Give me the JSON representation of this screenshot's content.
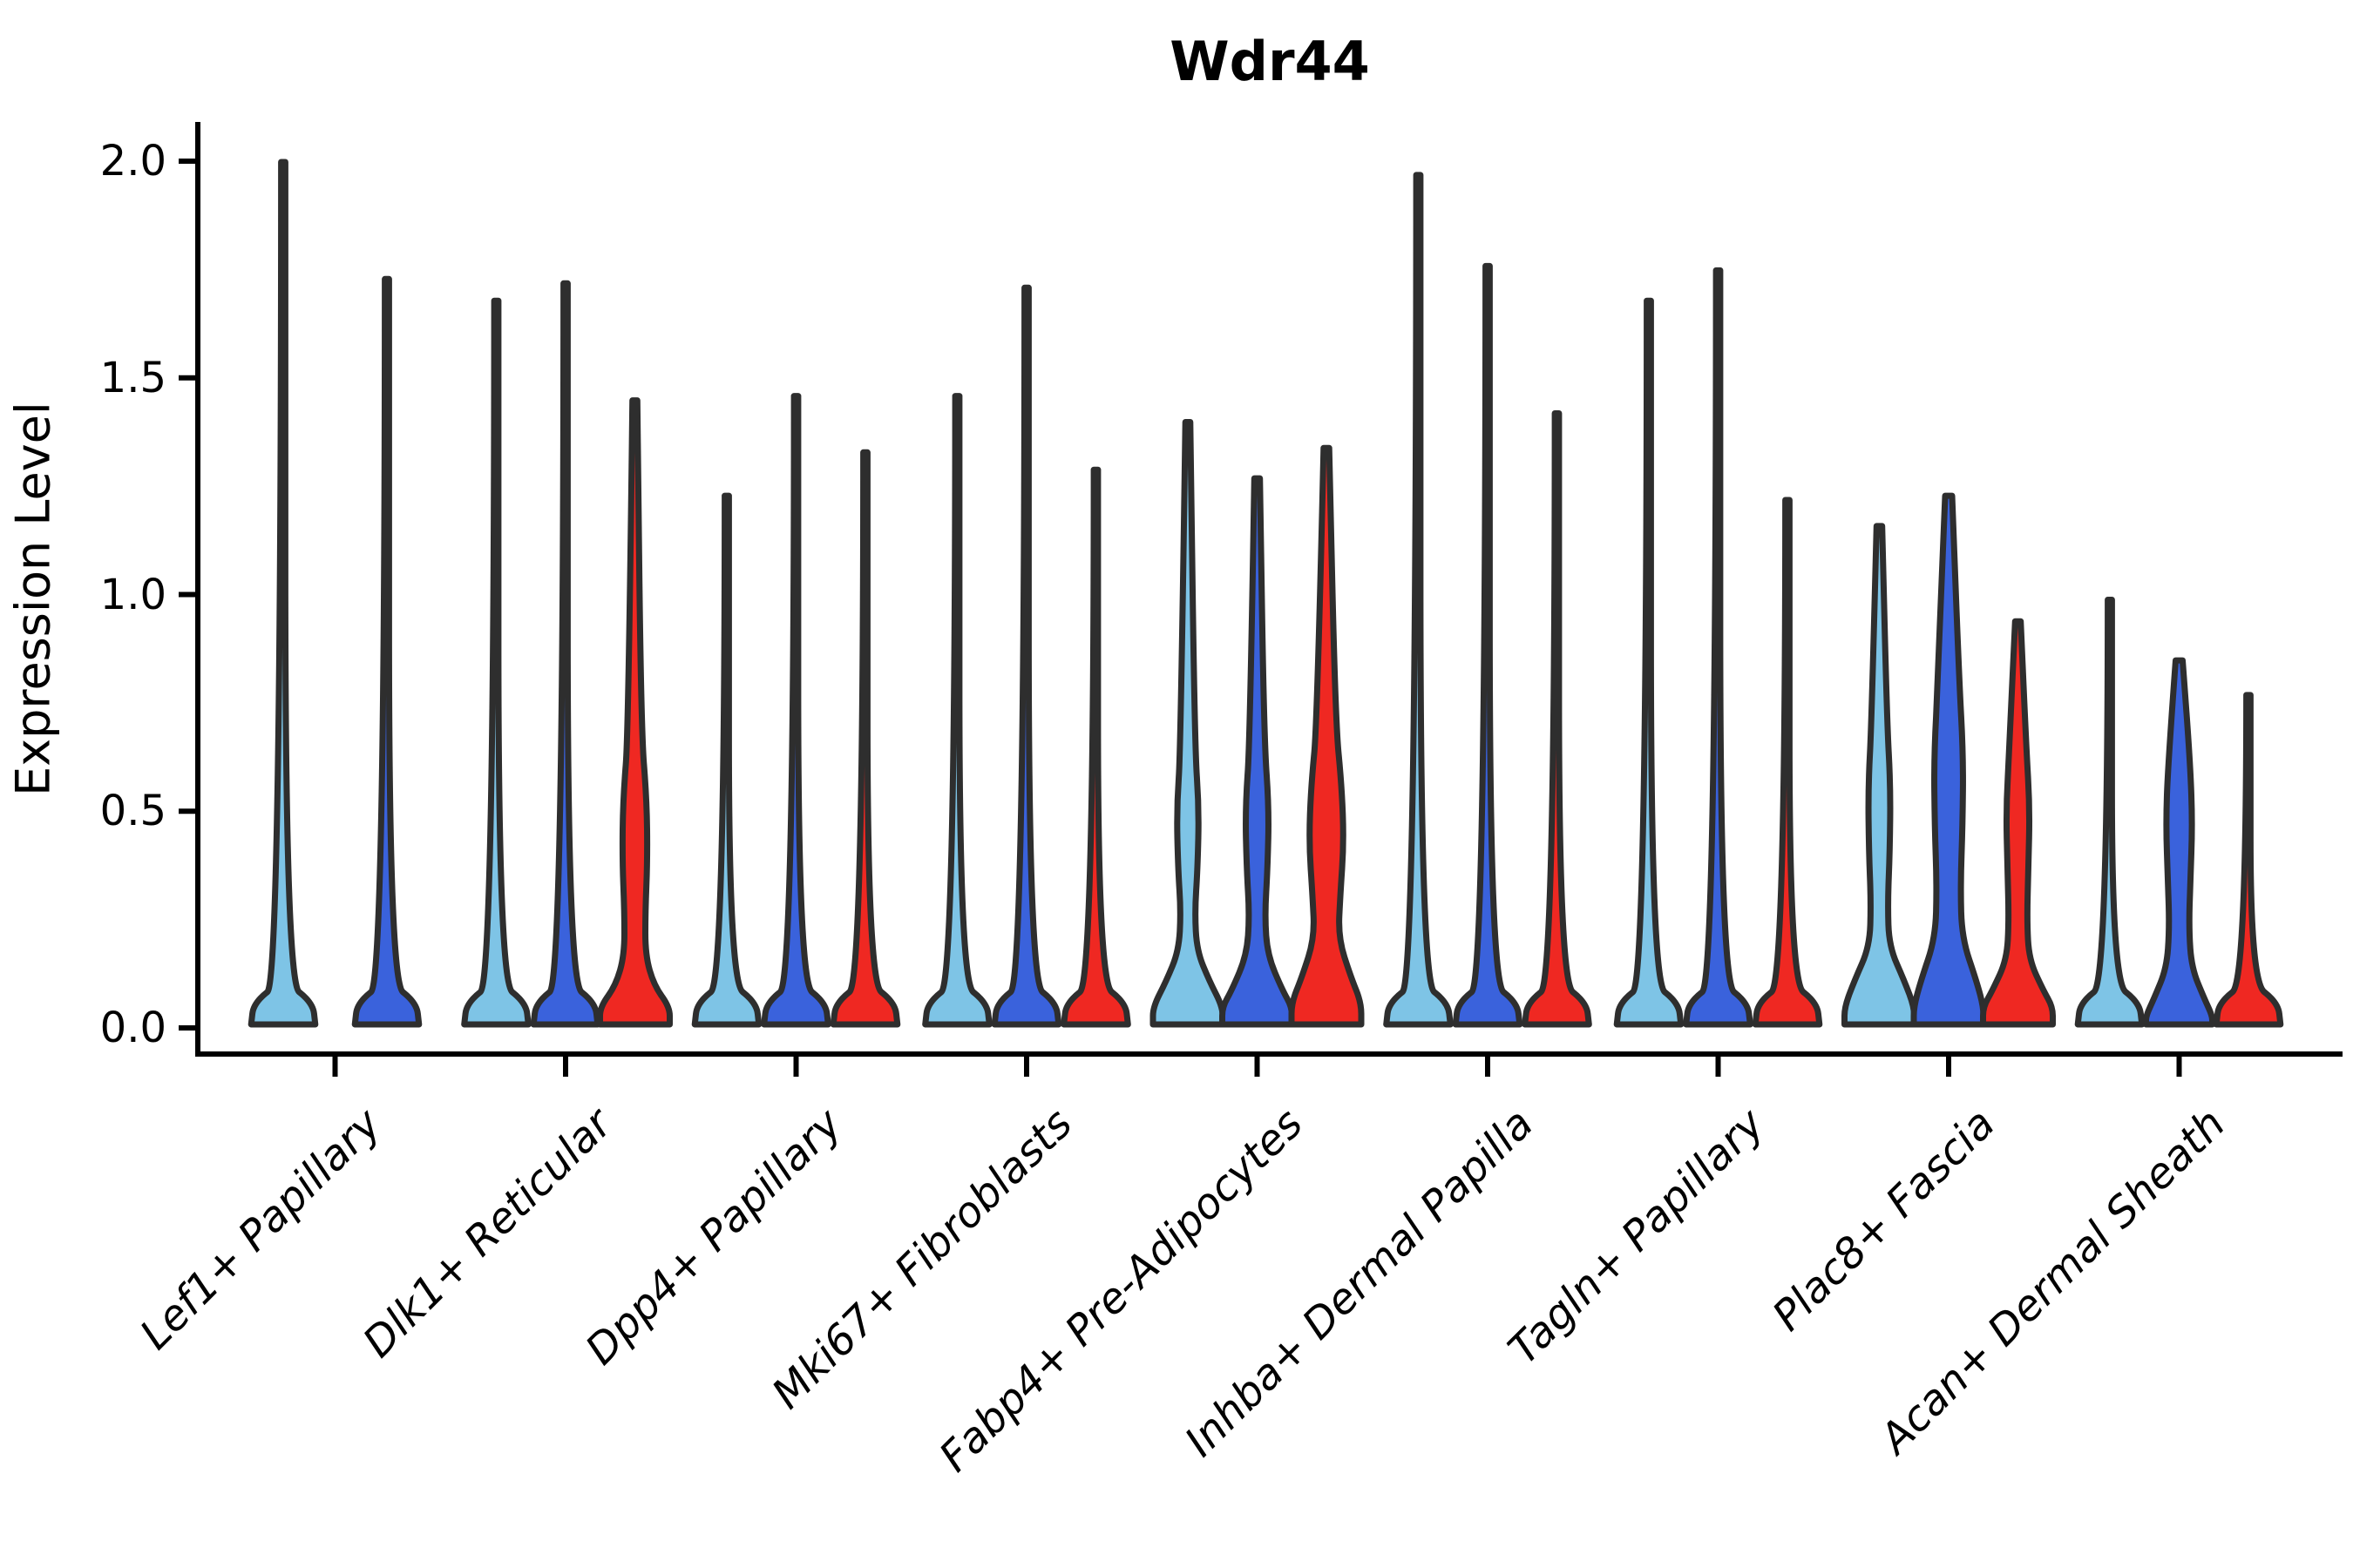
{
  "title": "Wdr44",
  "axes": {
    "ylabel": "Expression Level",
    "ytick_labels": [
      "0.0",
      "0.5",
      "1.0",
      "1.5",
      "2.0"
    ]
  },
  "palette": {
    "light_blue": "#7EC4E6",
    "blue": "#3A62DC",
    "red": "#EF2822",
    "violin_outline": "#2E2E2E",
    "axis_color": "#000000"
  },
  "chart_data": {
    "type": "violin",
    "title": "Wdr44",
    "xlabel": "",
    "ylabel": "Expression Level",
    "ylim": [
      0,
      2.07
    ],
    "yticks": [
      0.0,
      0.5,
      1.0,
      1.5,
      2.0
    ],
    "grid": false,
    "legend": "none",
    "categories": [
      "Lef1+ Papillary",
      "Dlk1+ Reticular",
      "Dpp4+ Papillary",
      "Mki67+ Fibroblasts",
      "Fabp4+ Pre-Adipocytes",
      "Inhba+ Dermal Papilla",
      "Tagln+ Papillary",
      "Plac8+ Fascia",
      "Acan+ Dermal Sheath"
    ],
    "hue_colors": [
      "light_blue",
      "blue",
      "red"
    ],
    "note": "Each category holds up to 3 dodged violins; 'max' is the top of the expression spike; 'profile' lists [expression_value, relative_halfwidth] pairs describing the KDE body shape.",
    "groups": [
      {
        "category": "Lef1+ Papillary",
        "violins": [
          {
            "hue": 0,
            "max": 1.99,
            "shape": "spike"
          },
          {
            "hue": 1,
            "max": 1.72,
            "shape": "spike"
          }
        ]
      },
      {
        "category": "Dlk1+ Reticular",
        "violins": [
          {
            "hue": 0,
            "max": 1.67,
            "shape": "spike"
          },
          {
            "hue": 1,
            "max": 1.71,
            "shape": "spike"
          },
          {
            "hue": 2,
            "max": 1.44,
            "shape": "kde",
            "profile": [
              [
                1.44,
                0.07
              ],
              [
                0.68,
                0.18
              ],
              [
                0.52,
                0.34
              ],
              [
                0.38,
                0.36
              ],
              [
                0.26,
                0.3
              ],
              [
                0.16,
                0.3
              ],
              [
                0.09,
                0.55
              ],
              [
                0.04,
                1.0
              ],
              [
                0,
                1.0
              ]
            ]
          }
        ]
      },
      {
        "category": "Dpp4+ Papillary",
        "violins": [
          {
            "hue": 0,
            "max": 1.22,
            "shape": "spike"
          },
          {
            "hue": 1,
            "max": 1.45,
            "shape": "spike"
          },
          {
            "hue": 2,
            "max": 1.32,
            "shape": "spike"
          }
        ]
      },
      {
        "category": "Mki67+ Fibroblasts",
        "violins": [
          {
            "hue": 0,
            "max": 1.45,
            "shape": "spike"
          },
          {
            "hue": 1,
            "max": 1.7,
            "shape": "spike"
          },
          {
            "hue": 2,
            "max": 1.28,
            "shape": "spike"
          }
        ]
      },
      {
        "category": "Fabp4+ Pre-Adipocytes",
        "violins": [
          {
            "hue": 0,
            "max": 1.39,
            "shape": "kde",
            "profile": [
              [
                1.39,
                0.07
              ],
              [
                0.64,
                0.2
              ],
              [
                0.5,
                0.32
              ],
              [
                0.36,
                0.28
              ],
              [
                0.26,
                0.2
              ],
              [
                0.17,
                0.26
              ],
              [
                0.1,
                0.62
              ],
              [
                0.04,
                1.0
              ],
              [
                0,
                1.0
              ]
            ]
          },
          {
            "hue": 1,
            "max": 1.26,
            "shape": "kde",
            "profile": [
              [
                1.26,
                0.08
              ],
              [
                0.66,
                0.2
              ],
              [
                0.5,
                0.34
              ],
              [
                0.36,
                0.3
              ],
              [
                0.25,
                0.22
              ],
              [
                0.16,
                0.3
              ],
              [
                0.08,
                0.72
              ],
              [
                0.04,
                1.0
              ],
              [
                0,
                1.0
              ]
            ]
          },
          {
            "hue": 2,
            "max": 1.33,
            "shape": "kde",
            "profile": [
              [
                1.33,
                0.08
              ],
              [
                0.7,
                0.26
              ],
              [
                0.55,
                0.44
              ],
              [
                0.42,
                0.5
              ],
              [
                0.3,
                0.4
              ],
              [
                0.2,
                0.34
              ],
              [
                0.11,
                0.7
              ],
              [
                0.05,
                1.0
              ],
              [
                0,
                1.0
              ]
            ]
          }
        ]
      },
      {
        "category": "Inhba+ Dermal Papilla",
        "violins": [
          {
            "hue": 0,
            "max": 1.96,
            "shape": "spike"
          },
          {
            "hue": 1,
            "max": 1.75,
            "shape": "spike"
          },
          {
            "hue": 2,
            "max": 1.41,
            "shape": "spike"
          }
        ]
      },
      {
        "category": "Tagln+ Papillary",
        "violins": [
          {
            "hue": 0,
            "max": 1.67,
            "shape": "spike"
          },
          {
            "hue": 1,
            "max": 1.74,
            "shape": "spike"
          },
          {
            "hue": 2,
            "max": 1.21,
            "shape": "spike"
          }
        ]
      },
      {
        "category": "Plac8+ Fascia",
        "violins": [
          {
            "hue": 0,
            "max": 1.15,
            "shape": "kde",
            "profile": [
              [
                1.15,
                0.08
              ],
              [
                0.7,
                0.22
              ],
              [
                0.55,
                0.32
              ],
              [
                0.4,
                0.3
              ],
              [
                0.28,
                0.24
              ],
              [
                0.18,
                0.28
              ],
              [
                0.1,
                0.72
              ],
              [
                0.04,
                1.0
              ],
              [
                0,
                1.0
              ]
            ]
          },
          {
            "hue": 1,
            "max": 1.22,
            "shape": "kde",
            "profile": [
              [
                1.22,
                0.1
              ],
              [
                0.8,
                0.3
              ],
              [
                0.62,
                0.42
              ],
              [
                0.46,
                0.4
              ],
              [
                0.32,
                0.34
              ],
              [
                0.2,
                0.38
              ],
              [
                0.1,
                0.8
              ],
              [
                0.04,
                1.0
              ],
              [
                0,
                1.0
              ]
            ]
          },
          {
            "hue": 2,
            "max": 0.93,
            "shape": "kde",
            "profile": [
              [
                0.93,
                0.08
              ],
              [
                0.64,
                0.24
              ],
              [
                0.5,
                0.34
              ],
              [
                0.36,
                0.3
              ],
              [
                0.24,
                0.26
              ],
              [
                0.15,
                0.32
              ],
              [
                0.08,
                0.72
              ],
              [
                0.04,
                1.0
              ],
              [
                0,
                1.0
              ]
            ]
          }
        ]
      },
      {
        "category": "Acan+ Dermal Sheath",
        "violins": [
          {
            "hue": 0,
            "max": 0.98,
            "shape": "spike"
          },
          {
            "hue": 1,
            "max": 0.84,
            "shape": "kde",
            "profile": [
              [
                0.84,
                0.1
              ],
              [
                0.6,
                0.32
              ],
              [
                0.46,
                0.38
              ],
              [
                0.33,
                0.32
              ],
              [
                0.22,
                0.28
              ],
              [
                0.13,
                0.36
              ],
              [
                0.06,
                0.72
              ],
              [
                0.02,
                0.95
              ],
              [
                0,
                0.95
              ]
            ]
          },
          {
            "hue": 2,
            "max": 0.76,
            "shape": "spike"
          }
        ]
      }
    ]
  }
}
